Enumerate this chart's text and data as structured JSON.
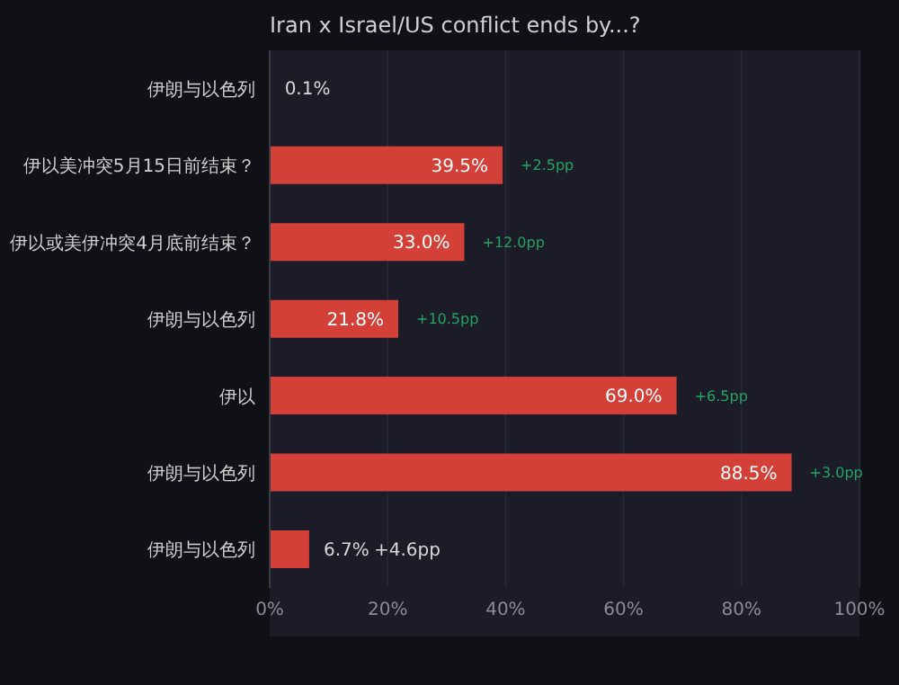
{
  "chart_data": {
    "type": "bar",
    "orientation": "horizontal",
    "title": "Iran x Israel/US conflict ends by...?",
    "categories": [
      "伊朗与以色列",
      "伊以美冲突5月15日前结束？",
      "伊以或美伊冲突4月底前结束？",
      "伊朗与以色列",
      "伊以",
      "伊朗与以色列",
      "伊朗与以色列"
    ],
    "values": [
      0.1,
      39.5,
      33.0,
      21.8,
      69.0,
      88.5,
      6.7
    ],
    "value_labels": [
      "0.1%",
      "39.5%",
      "33.0%",
      "21.8%",
      "69.0%",
      "88.5%",
      "6.7%"
    ],
    "color": "#d24037",
    "xlim": [
      0,
      100
    ],
    "xticks": [
      {
        "value": 0,
        "label": "0%"
      },
      {
        "value": 20,
        "label": "20%"
      },
      {
        "value": 40,
        "label": "40%"
      },
      {
        "value": 60,
        "label": "60%"
      },
      {
        "value": 80,
        "label": "80%"
      },
      {
        "value": 100,
        "label": "100%"
      }
    ],
    "grid": "x",
    "legend": false,
    "annotations": [
      "+2.5pp",
      "+12.0pp",
      "+10.5pp",
      "+6.5pp",
      "+3.0pp",
      "+4.6pp"
    ]
  }
}
